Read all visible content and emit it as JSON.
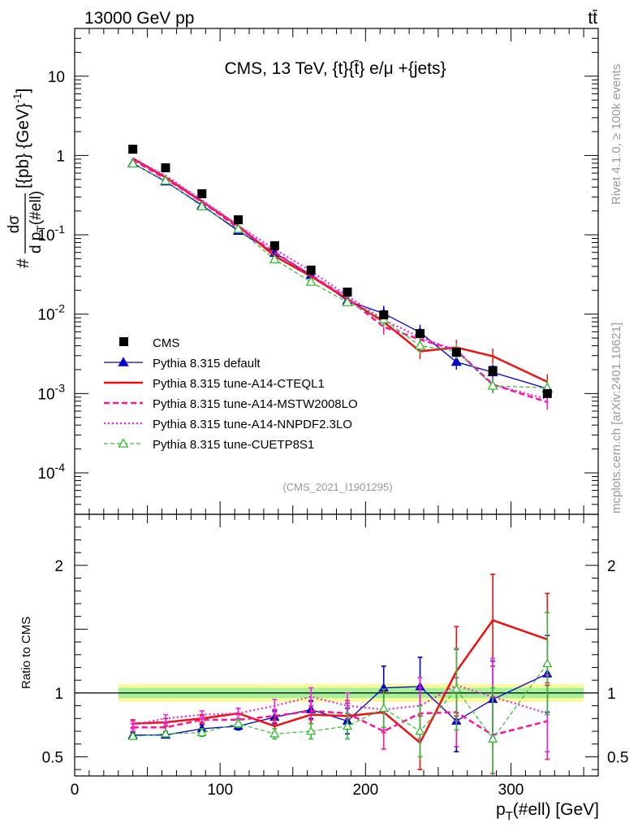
{
  "header": {
    "energy_label": "13000 GeV pp",
    "process_label": "tt̄"
  },
  "side_labels": {
    "rivet": "Rivet 4.1.0, ≥ 100k events",
    "mcplots": "mcplots.cern.ch [arXiv:2401.10621]"
  },
  "chart_data": {
    "type": "line",
    "title": "CMS, 13 TeV, {t}{t̄} e/μ +{jets}",
    "analysis_id": "(CMS_2021_I1901295)",
    "xlabel": "p_T(#ell) [GeV]",
    "ylabel_main": "#dσ/d p_T(#ell) [{pb} {GeV}^-1]",
    "ylabel_ratio": "Ratio to CMS",
    "xlim": [
      0,
      360
    ],
    "ylim_main": [
      3e-05,
      40
    ],
    "ylim_ratio": [
      0.35,
      2.4
    ],
    "x_ticks": [
      0,
      100,
      200,
      300
    ],
    "x_tick_labels": [
      "0",
      "100",
      "200",
      "300"
    ],
    "y_ticks_main": [
      0.0001,
      0.001,
      0.01,
      0.1,
      1,
      10
    ],
    "y_tick_labels_main": [
      "10^-4",
      "10^-3",
      "10^-2",
      "10^-1",
      "1",
      "10"
    ],
    "y_ticks_ratio": [
      0.5,
      1,
      2
    ],
    "y_tick_labels_ratio": [
      "0.5",
      "1",
      "2"
    ],
    "x": [
      40,
      62.5,
      87.5,
      112.5,
      137.5,
      162.5,
      187.5,
      212.5,
      237.5,
      262.5,
      287.5,
      325
    ],
    "x_bin_edges": [
      30,
      50,
      75,
      100,
      125,
      150,
      175,
      200,
      225,
      250,
      275,
      300,
      350
    ],
    "band": {
      "inner_color": "#a4f09b",
      "outer_color": "#fbf99c",
      "inner_rel": 0.04,
      "outer_rel": 0.07
    },
    "series": [
      {
        "name": "CMS",
        "style": "data",
        "color": "#000000",
        "values": [
          1.2,
          0.7,
          0.33,
          0.155,
          0.073,
          0.036,
          0.019,
          0.0098,
          0.0057,
          0.0033,
          0.00195,
          0.001
        ]
      },
      {
        "name": "Pythia 8.315 default",
        "style": "line",
        "color": "#0000cc",
        "marker": "filled-triangle",
        "values": [
          0.8,
          0.47,
          0.236,
          0.112,
          0.059,
          0.0313,
          0.0148,
          0.0102,
          0.0059,
          0.0025,
          0.00185,
          0.00115
        ]
      },
      {
        "name": "Pythia 8.315 tune-A14-CTEQL1",
        "style": "line-thick",
        "color": "#ee1111",
        "marker": "none",
        "values": [
          0.92,
          0.53,
          0.264,
          0.13,
          0.054,
          0.03,
          0.0155,
          0.008,
          0.0034,
          0.0038,
          0.00295,
          0.0014
        ]
      },
      {
        "name": "Pythia 8.315 tune-A14-MSTW2008LO",
        "style": "dashed",
        "color": "#ff1493",
        "marker": "none",
        "values": [
          0.88,
          0.51,
          0.26,
          0.122,
          0.06,
          0.031,
          0.016,
          0.0069,
          0.0048,
          0.0035,
          0.0013,
          0.00078
        ]
      },
      {
        "name": "Pythia 8.315 tune-A14-NNPDF2.3LO",
        "style": "dotted",
        "color": "#ee22ee",
        "marker": "none",
        "values": [
          0.91,
          0.56,
          0.275,
          0.13,
          0.066,
          0.035,
          0.017,
          0.0085,
          0.0051,
          0.0035,
          0.0013,
          0.00085
        ]
      },
      {
        "name": "Pythia 8.315 tune-CUETP8S1",
        "style": "dashed-light",
        "color": "#33bb33",
        "marker": "open-triangle",
        "values": [
          0.79,
          0.48,
          0.228,
          0.118,
          0.049,
          0.0255,
          0.0141,
          0.0086,
          0.004,
          0.0034,
          0.00125,
          0.00118
        ]
      }
    ],
    "ratio_series": [
      {
        "name": "Pythia 8.315 default",
        "values": [
          0.67,
          0.67,
          0.72,
          0.74,
          0.81,
          0.87,
          0.78,
          1.04,
          1.05,
          0.78,
          0.95,
          1.15
        ],
        "err": [
          0.02,
          0.02,
          0.03,
          0.03,
          0.05,
          0.07,
          0.1,
          0.17,
          0.23,
          0.24,
          0.3,
          0.3
        ]
      },
      {
        "name": "Pythia 8.315 tune-A14-CTEQL1",
        "values": [
          0.76,
          0.77,
          0.8,
          0.84,
          0.74,
          0.83,
          0.82,
          0.85,
          0.61,
          1.17,
          1.57,
          1.42
        ],
        "err": [
          0.03,
          0.03,
          0.03,
          0.04,
          0.05,
          0.07,
          0.1,
          0.16,
          0.21,
          0.35,
          0.36,
          0.36
        ]
      },
      {
        "name": "Pythia 8.315 tune-A14-MSTW2008LO",
        "values": [
          0.73,
          0.73,
          0.79,
          0.79,
          0.82,
          0.86,
          0.84,
          0.7,
          0.84,
          0.85,
          0.67,
          0.78
        ],
        "err": [
          0.03,
          0.03,
          0.03,
          0.04,
          0.05,
          0.07,
          0.1,
          0.14,
          0.2,
          0.27,
          0.3,
          0.3
        ]
      },
      {
        "name": "Pythia 8.315 tune-A14-NNPDF2.3LO",
        "values": [
          0.75,
          0.8,
          0.83,
          0.84,
          0.9,
          0.97,
          0.9,
          0.87,
          0.9,
          1.06,
          0.97,
          0.84
        ],
        "err": [
          0.03,
          0.03,
          0.03,
          0.04,
          0.05,
          0.07,
          0.1,
          0.16,
          0.22,
          0.28,
          0.3,
          0.3
        ]
      },
      {
        "name": "Pythia 8.315 tune-CUETP8S1",
        "values": [
          0.66,
          0.68,
          0.69,
          0.76,
          0.68,
          0.7,
          0.74,
          0.88,
          0.7,
          1.03,
          0.64,
          1.23
        ],
        "err": [
          0.02,
          0.02,
          0.03,
          0.03,
          0.04,
          0.06,
          0.1,
          0.15,
          0.2,
          0.32,
          0.4,
          0.4
        ]
      }
    ]
  }
}
